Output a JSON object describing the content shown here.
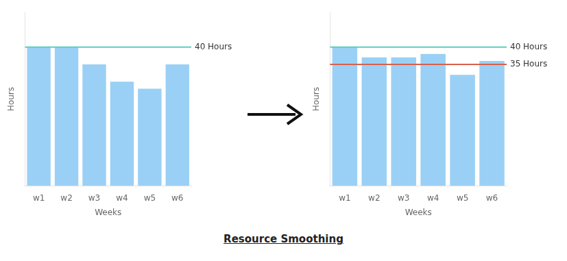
{
  "title": "Resource Smoothing",
  "chart_data": [
    {
      "type": "bar",
      "categories": [
        "w1",
        "w2",
        "w3",
        "w4",
        "w5",
        "w6"
      ],
      "values": [
        40,
        40,
        35,
        30,
        28,
        35
      ],
      "xlabel": "Weeks",
      "ylabel": "Hours",
      "ylim": [
        0,
        50
      ],
      "yticks": [],
      "grid": false,
      "tick_labels": "x",
      "annotations": [
        {
          "y": 40,
          "text": "40 Hours",
          "color": "#5ecfbe"
        }
      ]
    },
    {
      "type": "bar",
      "categories": [
        "w1",
        "w2",
        "w3",
        "w4",
        "w5",
        "w6"
      ],
      "values": [
        40,
        37,
        37,
        38,
        32,
        36
      ],
      "xlabel": "Weeks",
      "ylabel": "Hours",
      "ylim": [
        0,
        50
      ],
      "yticks": [],
      "grid": false,
      "tick_labels": "x",
      "annotations": [
        {
          "y": 40,
          "text": "40 Hours",
          "color": "#5ecfbe"
        },
        {
          "y": 35,
          "text": "35 Hours",
          "color": "#d9604a"
        }
      ]
    }
  ]
}
